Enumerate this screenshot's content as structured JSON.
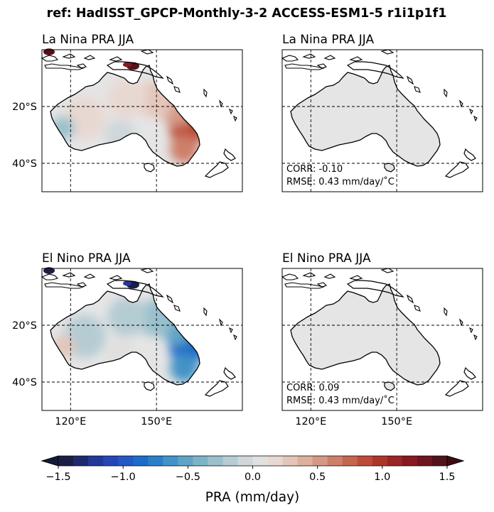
{
  "suptitle": "ref: HadISST_GPCP-Monthly-3-2 ACCESS-ESM1-5 r1i1p1f1",
  "panels": [
    {
      "id": "p1",
      "title": "La Nina PRA JJA",
      "kind": "anomaly",
      "sign": 1,
      "stats": null
    },
    {
      "id": "p2",
      "title": "La Nina PRA JJA",
      "kind": "model",
      "stats": {
        "corr": "CORR: -0.10",
        "rmse": "RMSE: 0.43 mm/day/˚C"
      }
    },
    {
      "id": "p3",
      "title": "El Nino PRA JJA",
      "kind": "anomaly",
      "sign": -1,
      "stats": null
    },
    {
      "id": "p4",
      "title": "El Nino PRA JJA",
      "kind": "model",
      "stats": {
        "corr": "CORR: 0.09",
        "rmse": "RMSE: 0.43 mm/day/˚C"
      }
    }
  ],
  "map_axes": {
    "lon_ticks": [
      {
        "value": 120,
        "label": "120°E"
      },
      {
        "value": 150,
        "label": "150°E"
      }
    ],
    "lat_ticks": [
      {
        "value": -20,
        "label": "20°S"
      },
      {
        "value": -40,
        "label": "40°S"
      }
    ],
    "lon_range": [
      110,
      180
    ],
    "lat_range": [
      -50,
      0
    ]
  },
  "colorbar": {
    "label": "PRA (mm/day)",
    "ticks": [
      {
        "value": -1.5,
        "label": "−1.5"
      },
      {
        "value": -1.0,
        "label": "−1.0"
      },
      {
        "value": -0.5,
        "label": "−0.5"
      },
      {
        "value": 0.0,
        "label": "0.0"
      },
      {
        "value": 0.5,
        "label": "0.5"
      },
      {
        "value": 1.0,
        "label": "1.0"
      },
      {
        "value": 1.5,
        "label": "1.5"
      }
    ],
    "range": [
      -1.5,
      1.5
    ],
    "colors": [
      "#1b1f45",
      "#1f2a6e",
      "#233899",
      "#2547b5",
      "#2458c4",
      "#1f6bc9",
      "#2a80c8",
      "#4293c6",
      "#5fa4c6",
      "#7cb3c6",
      "#99c0cc",
      "#b6ccd3",
      "#cfd7da",
      "#e2e0df",
      "#e8d8d2",
      "#e4c6b9",
      "#ddb09e",
      "#d59884",
      "#cd7f69",
      "#c5664f",
      "#bc4c39",
      "#ad362b",
      "#9b2425",
      "#861923",
      "#6d1520",
      "#541219"
    ]
  },
  "chart_data": {
    "type": "heatmap",
    "title": "ref: HadISST_GPCP-Monthly-3-2 ACCESS-ESM1-5 r1i1p1f1",
    "subplots": [
      {
        "title": "La Nina PRA JJA",
        "xlim": [
          110,
          180
        ],
        "ylim": [
          -50,
          0
        ],
        "xticks": [
          "120°E",
          "150°E"
        ],
        "yticks": [
          "20°S",
          "40°S"
        ],
        "field": "positive anomalies up to ~0.9 over eastern Australia; strong positive (>1.5) over New Guinea and northern islands"
      },
      {
        "title": "La Nina PRA JJA",
        "xlim": [
          110,
          180
        ],
        "ylim": [
          -50,
          0
        ],
        "xticks": [
          "120°E",
          "150°E"
        ],
        "yticks": [
          "20°S",
          "40°S"
        ],
        "corr": -0.1,
        "rmse": 0.43,
        "field": "near-zero (grey) over Australia"
      },
      {
        "title": "El Nino PRA JJA",
        "xlim": [
          110,
          180
        ],
        "ylim": [
          -50,
          0
        ],
        "xticks": [
          "120°E",
          "150°E"
        ],
        "yticks": [
          "20°S",
          "40°S"
        ],
        "field": "negative anomalies down to ~-0.7 over eastern Australia; strong negative (<-1.5) over New Guinea"
      },
      {
        "title": "El Nino PRA JJA",
        "xlim": [
          110,
          180
        ],
        "ylim": [
          -50,
          0
        ],
        "xticks": [
          "120°E",
          "150°E"
        ],
        "yticks": [
          "20°S",
          "40°S"
        ],
        "corr": 0.09,
        "rmse": 0.43,
        "field": "near-zero (grey) over Australia"
      }
    ],
    "colorbar": {
      "label": "PRA (mm/day)",
      "range": [
        -1.5,
        1.5
      ],
      "ticks": [
        -1.5,
        -1.0,
        -0.5,
        0.0,
        0.5,
        1.0,
        1.5
      ]
    }
  }
}
